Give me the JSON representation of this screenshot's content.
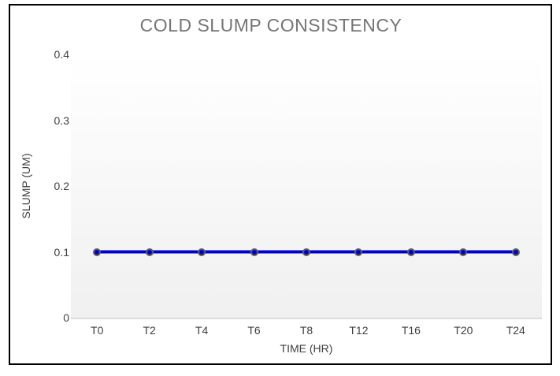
{
  "chart_data": {
    "type": "line",
    "title": "COLD SLUMP CONSISTENCY",
    "xlabel": "TIME (HR)",
    "ylabel": "SLUMP (UM)",
    "categories": [
      "T0",
      "T2",
      "T4",
      "T6",
      "T8",
      "T12",
      "T16",
      "T20",
      "T24"
    ],
    "series": [
      {
        "name": "SLUMP (UM)",
        "values": [
          0.1,
          0.1,
          0.1,
          0.1,
          0.1,
          0.1,
          0.1,
          0.1,
          0.1
        ]
      }
    ],
    "ylim": [
      0,
      0.4
    ],
    "yticks": [
      0,
      0.1,
      0.2,
      0.3,
      0.4
    ],
    "ytick_labels": [
      "0",
      "0.1",
      "0.2",
      "0.3",
      "0.4"
    ],
    "grid": false,
    "legend": "none",
    "colors": {
      "line": "#0000cc",
      "marker_fill": "#0000cc",
      "marker_border": "#5f5f5f",
      "title_text": "#757575",
      "axis_text": "#404040",
      "plot_gradient_top": "#ffffff",
      "plot_gradient_bottom": "#f0f0f0",
      "baseline": "#dcdcdc",
      "frame_border": "#000000"
    }
  }
}
